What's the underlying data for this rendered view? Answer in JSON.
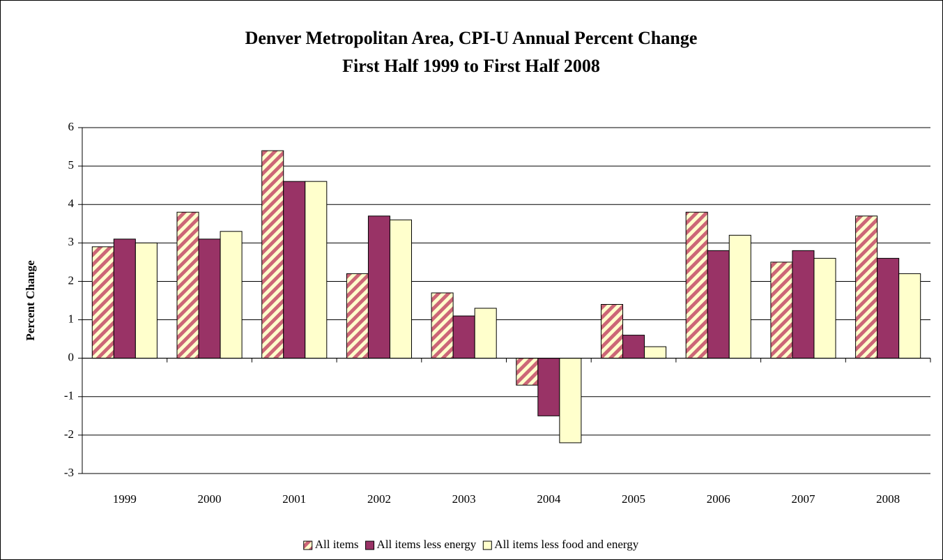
{
  "chart_data": {
    "type": "bar",
    "title": "Denver Metropolitan Area, CPI-U Annual Percent Change",
    "subtitle": "First Half 1999 to First Half 2008",
    "y_label": "Percent Change",
    "categories": [
      "1999",
      "2000",
      "2001",
      "2002",
      "2003",
      "2004",
      "2005",
      "2006",
      "2007",
      "2008"
    ],
    "series": [
      {
        "name": "All items",
        "color": "#cc6677",
        "pattern": "diagonal-hatch",
        "values": [
          2.9,
          3.8,
          5.4,
          2.2,
          1.7,
          -0.7,
          1.4,
          3.8,
          2.5,
          3.7
        ]
      },
      {
        "name": "All items less energy",
        "color": "#993366",
        "values": [
          3.1,
          3.1,
          4.6,
          3.7,
          1.1,
          -1.5,
          0.6,
          2.8,
          2.8,
          2.6
        ]
      },
      {
        "name": "All items less food and energy",
        "color": "#ffffcc",
        "values": [
          3.0,
          3.3,
          4.6,
          3.6,
          1.3,
          -2.2,
          0.3,
          3.2,
          2.6,
          2.2
        ]
      }
    ],
    "ylim": [
      -3,
      6
    ],
    "yticks": [
      -3,
      -2,
      -1,
      0,
      1,
      2,
      3,
      4,
      5,
      6
    ],
    "grid": true,
    "legend": "bottom"
  }
}
